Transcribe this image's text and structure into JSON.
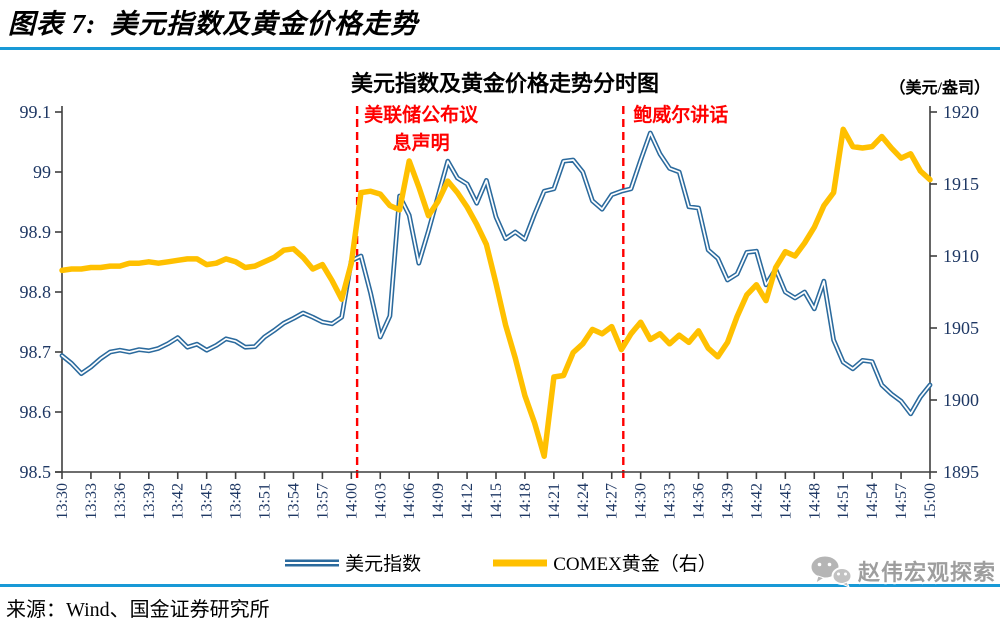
{
  "header": {
    "figure_label": "图表 7:",
    "figure_title": "美元指数及黄金价格走势"
  },
  "chart_data": {
    "type": "line",
    "title": "美元指数及黄金价格走势分时图",
    "unit_label": "（美元/盎司）",
    "x_minutes_total": 90,
    "x_tick_interval_min": 3,
    "x_tick_labels": [
      "13:30",
      "13:33",
      "13:36",
      "13:39",
      "13:42",
      "13:45",
      "13:48",
      "13:51",
      "13:54",
      "13:57",
      "14:00",
      "14:03",
      "14:06",
      "14:09",
      "14:12",
      "14:15",
      "14:18",
      "14:21",
      "14:24",
      "14:27",
      "14:30",
      "14:33",
      "14:36",
      "14:39",
      "14:42",
      "14:45",
      "14:48",
      "14:51",
      "14:54",
      "14:57",
      "15:00"
    ],
    "left_axis": {
      "min": 98.5,
      "max": 99.1,
      "tick_labels": [
        "99.1",
        "99",
        "98.9",
        "98.8",
        "98.7",
        "98.6",
        "98.5"
      ],
      "tick_values": [
        99.1,
        99.0,
        98.9,
        98.8,
        98.7,
        98.6,
        98.5
      ]
    },
    "right_axis": {
      "min": 1895,
      "max": 1920,
      "tick_labels": [
        "1920",
        "1915",
        "1910",
        "1905",
        "1900",
        "1895"
      ],
      "tick_values": [
        1920,
        1915,
        1910,
        1905,
        1900,
        1895
      ]
    },
    "series": [
      {
        "name": "美元指数",
        "axis": "left",
        "color": "#2B6A9D",
        "style": "double",
        "values": [
          98.694,
          98.681,
          98.664,
          98.675,
          98.689,
          98.7,
          98.703,
          98.7,
          98.704,
          98.702,
          98.706,
          98.714,
          98.724,
          98.708,
          98.713,
          98.703,
          98.711,
          98.722,
          98.718,
          98.708,
          98.709,
          98.725,
          98.736,
          98.748,
          98.756,
          98.765,
          98.758,
          98.75,
          98.747,
          98.758,
          98.852,
          98.86,
          98.798,
          98.725,
          98.76,
          98.96,
          98.928,
          98.848,
          98.902,
          98.96,
          99.018,
          98.99,
          98.98,
          98.948,
          98.986,
          98.925,
          98.889,
          98.9,
          98.888,
          98.93,
          98.968,
          98.972,
          99.018,
          99.02,
          99.0,
          98.952,
          98.938,
          98.962,
          98.968,
          98.972,
          99.02,
          99.065,
          99.03,
          99.006,
          99.0,
          98.942,
          98.94,
          98.87,
          98.856,
          98.82,
          98.83,
          98.866,
          98.868,
          98.812,
          98.838,
          98.8,
          98.79,
          98.8,
          98.772,
          98.818,
          98.72,
          98.683,
          98.672,
          98.686,
          98.684,
          98.645,
          98.63,
          98.618,
          98.597,
          98.625,
          98.645
        ]
      },
      {
        "name": "COMEX黄金（右）",
        "axis": "right",
        "color": "#FFC000",
        "style": "thick",
        "values": [
          1909.0,
          1909.1,
          1909.1,
          1909.2,
          1909.2,
          1909.3,
          1909.3,
          1909.5,
          1909.5,
          1909.6,
          1909.5,
          1909.6,
          1909.7,
          1909.8,
          1909.8,
          1909.4,
          1909.5,
          1909.8,
          1909.6,
          1909.2,
          1909.3,
          1909.6,
          1909.9,
          1910.4,
          1910.5,
          1909.9,
          1909.1,
          1909.4,
          1908.3,
          1907.0,
          1909.5,
          1914.4,
          1914.5,
          1914.3,
          1913.5,
          1913.2,
          1916.6,
          1914.8,
          1912.8,
          1913.8,
          1915.2,
          1914.4,
          1913.4,
          1912.2,
          1910.8,
          1908.1,
          1905.2,
          1902.9,
          1900.3,
          1898.4,
          1896.1,
          1901.6,
          1901.7,
          1903.3,
          1903.9,
          1904.9,
          1904.6,
          1905.1,
          1903.5,
          1904.6,
          1905.4,
          1904.2,
          1904.6,
          1903.9,
          1904.5,
          1904.0,
          1904.8,
          1903.6,
          1903.0,
          1904.0,
          1905.8,
          1907.3,
          1908.0,
          1906.9,
          1909.2,
          1910.3,
          1910.0,
          1910.9,
          1912.0,
          1913.5,
          1914.4,
          1918.8,
          1917.6,
          1917.5,
          1917.6,
          1918.3,
          1917.5,
          1916.8,
          1917.1,
          1915.9,
          1915.3
        ]
      }
    ],
    "annotations": [
      {
        "id": "fomc",
        "text_lines": [
          "美联储公布议",
          "息声明"
        ],
        "minute": 30.6,
        "align": "center",
        "dx": 64,
        "color": "#FF0000"
      },
      {
        "id": "powell",
        "text_lines": [
          "鲍威尔讲话"
        ],
        "minute": 58.2,
        "align": "left",
        "dx": 10,
        "color": "#FF0000"
      }
    ],
    "legend_position": "bottom",
    "grid": false
  },
  "footer": {
    "source": "来源：Wind、国金证券研究所",
    "watermark": "赵伟宏观探索"
  }
}
